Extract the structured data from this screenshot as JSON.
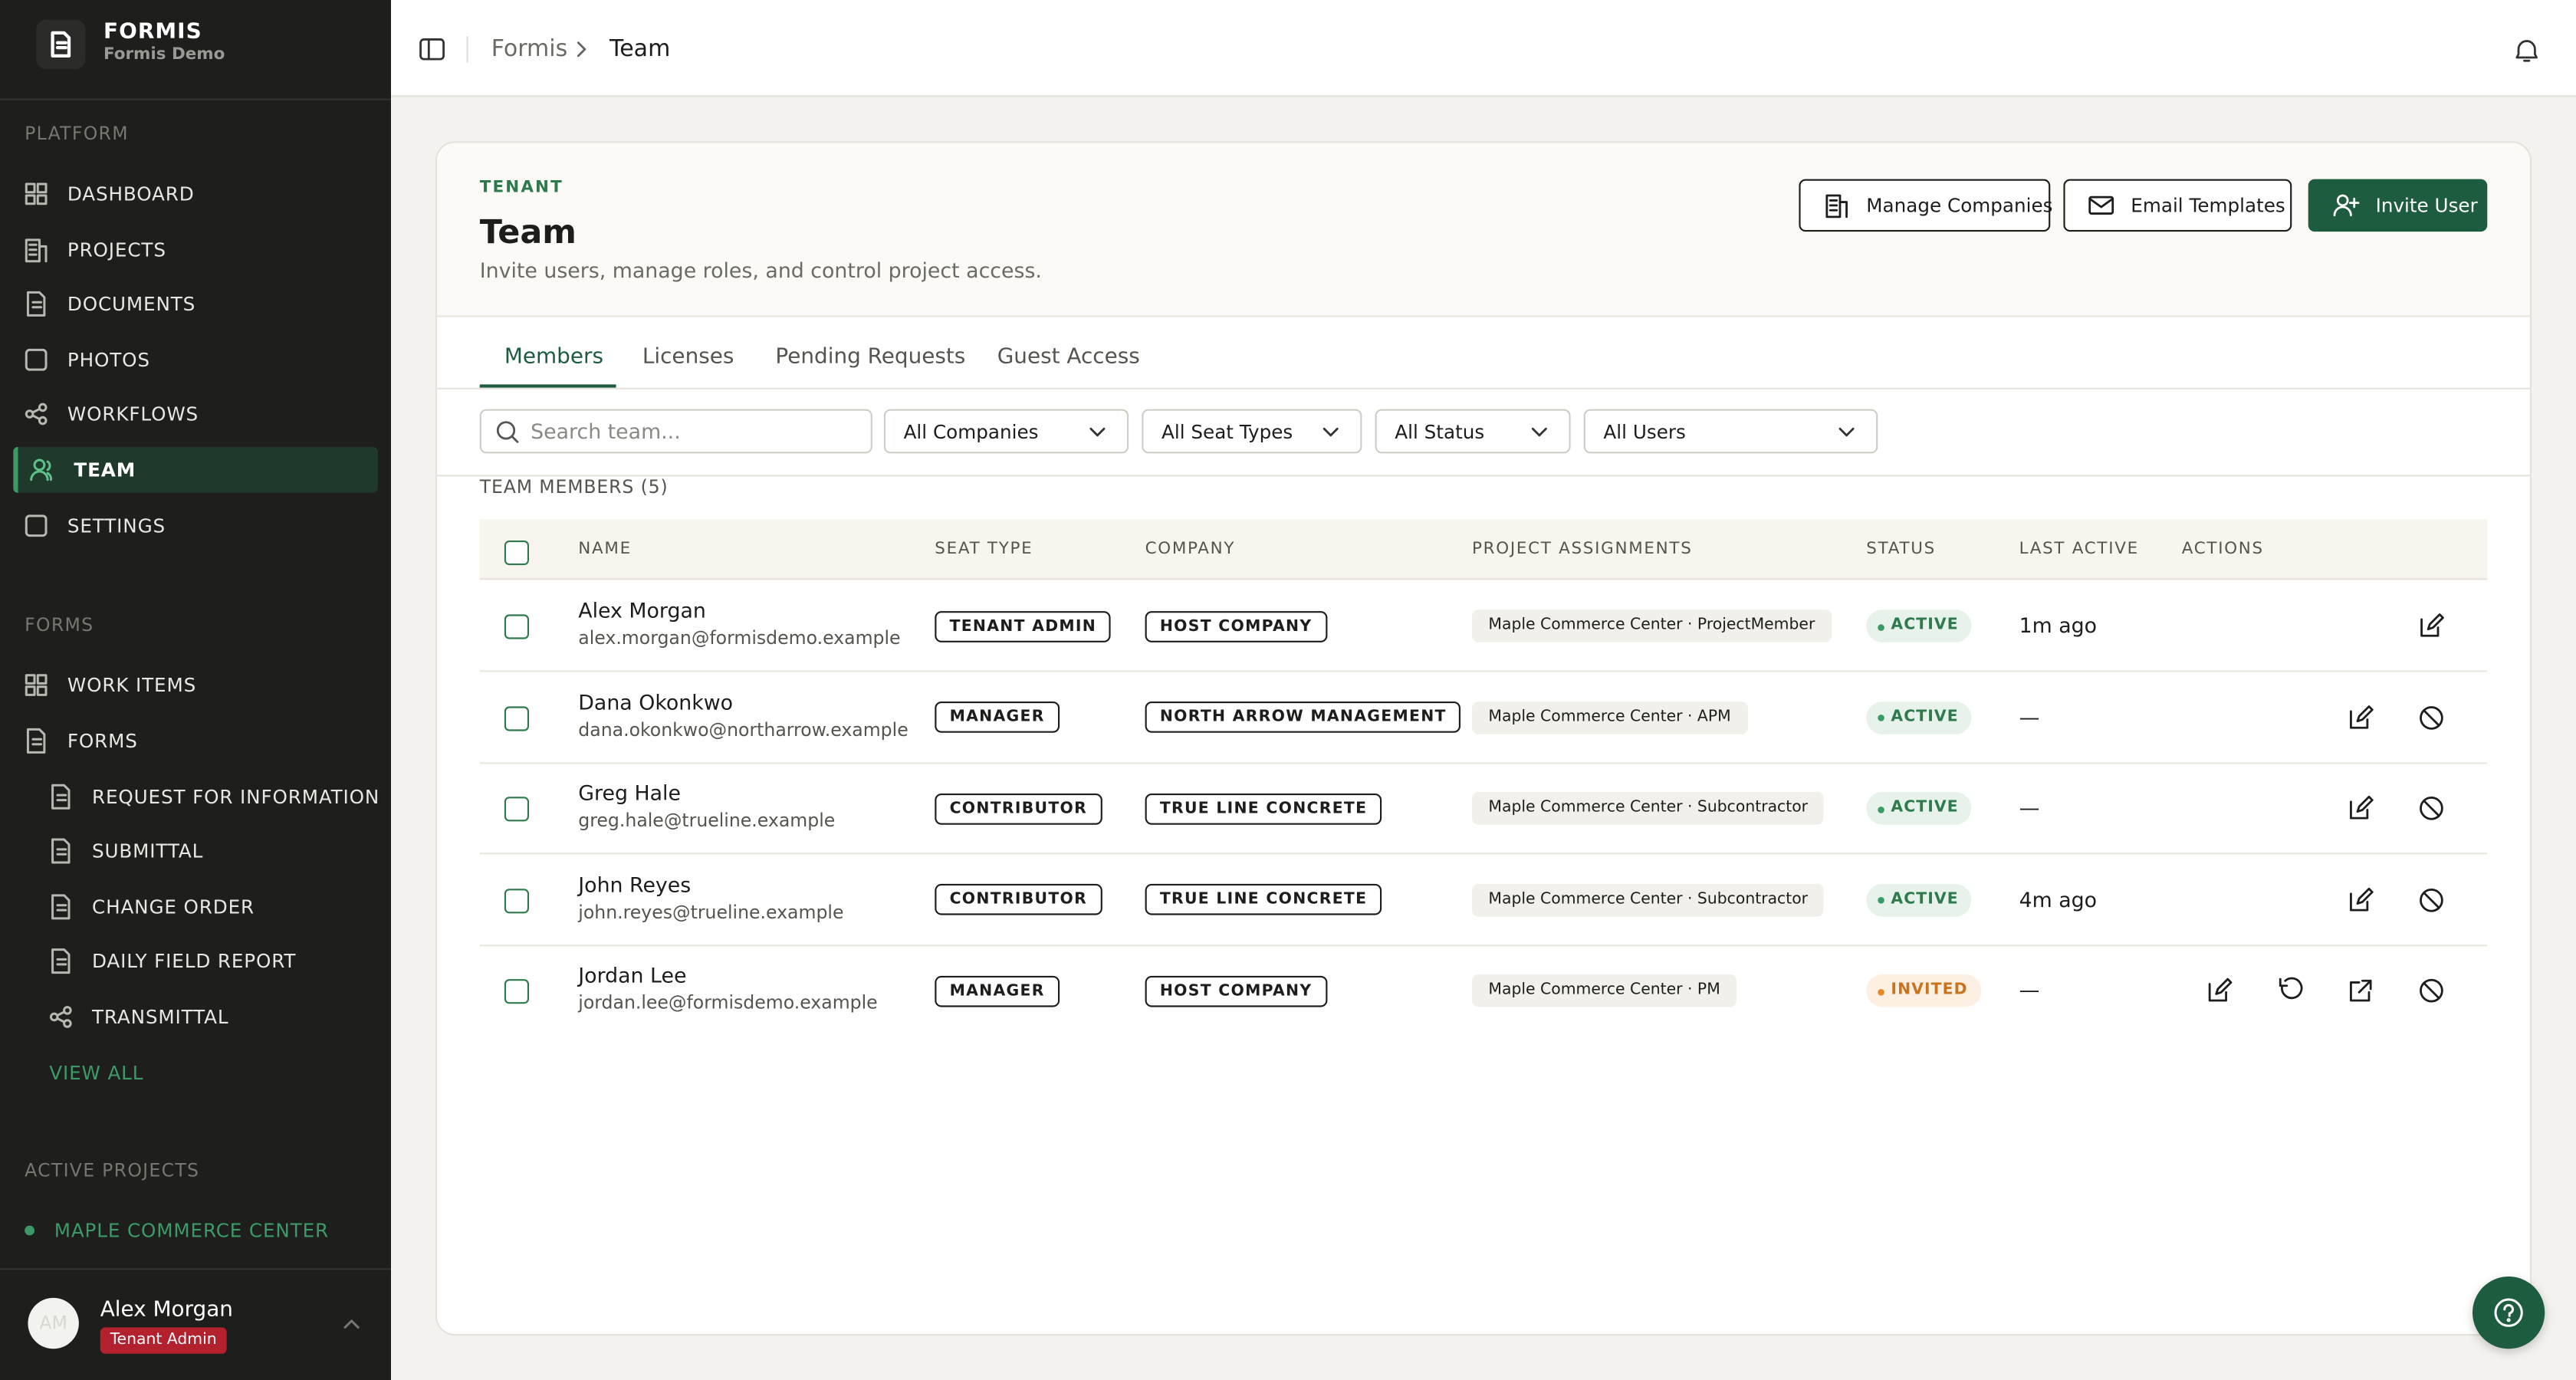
{
  "sidebar": {
    "brand": "FORMIS",
    "workspace": "Formis Demo",
    "platform": {
      "title": "PLATFORM",
      "items": [
        {
          "label": "DASHBOARD"
        },
        {
          "label": "PROJECTS"
        },
        {
          "label": "DOCUMENTS"
        },
        {
          "label": "PHOTOS"
        },
        {
          "label": "WORKFLOWS"
        },
        {
          "label": "TEAM",
          "active": true
        },
        {
          "label": "SETTINGS"
        }
      ]
    },
    "forms": {
      "title": "FORMS",
      "items": [
        "WORK ITEMS",
        "FORMS"
      ],
      "subitems": [
        "REQUEST FOR INFORMATION",
        "SUBMITTAL",
        "CHANGE ORDER",
        "DAILY FIELD REPORT",
        "TRANSMITTAL"
      ],
      "link": "VIEW ALL"
    },
    "active_projects": {
      "title": "ACTIVE PROJECTS",
      "items": [
        "MAPLE COMMERCE CENTER"
      ]
    },
    "user": {
      "initials": "AM",
      "name": "Alex Morgan",
      "role": "Tenant Admin"
    }
  },
  "topbar": {
    "breadcrumbs": [
      "Formis",
      "Team"
    ]
  },
  "page": {
    "eyebrow": "TENANT",
    "title": "Team",
    "subtitle": "Invite users, manage roles, and control project access.",
    "buttons": [
      "Manage Companies",
      "Email Templates",
      "Invite User"
    ]
  },
  "tabs": {
    "items": [
      "Members",
      "Licenses",
      "Pending Requests",
      "Guest Access"
    ],
    "active": 0
  },
  "filters": {
    "search_placeholder": "Search team...",
    "selects": [
      "All Companies",
      "All Seat Types",
      "All Status",
      "All Users"
    ]
  },
  "table": {
    "caption": "TEAM MEMBERS (5)",
    "columns": [
      "NAME",
      "SEAT TYPE",
      "COMPANY",
      "PROJECT ASSIGNMENTS",
      "STATUS",
      "LAST ACTIVE",
      "ACTIONS"
    ],
    "rows": [
      {
        "name": "Alex Morgan",
        "email": "alex.morgan@formisdemo.example",
        "seat": "TENANT ADMIN",
        "company": "HOST COMPANY",
        "assignment": "Maple Commerce Center · ProjectMember",
        "status": "ACTIVE",
        "last_active": "1m ago"
      },
      {
        "name": "Dana Okonkwo",
        "email": "dana.okonkwo@northarrow.example",
        "seat": "MANAGER",
        "company": "NORTH ARROW MANAGEMENT",
        "assignment": "Maple Commerce Center · APM",
        "status": "ACTIVE",
        "last_active": "—"
      },
      {
        "name": "Greg Hale",
        "email": "greg.hale@trueline.example",
        "seat": "CONTRIBUTOR",
        "company": "TRUE LINE CONCRETE",
        "assignment": "Maple Commerce Center · Subcontractor",
        "status": "ACTIVE",
        "last_active": "—"
      },
      {
        "name": "John Reyes",
        "email": "john.reyes@trueline.example",
        "seat": "CONTRIBUTOR",
        "company": "TRUE LINE CONCRETE",
        "assignment": "Maple Commerce Center · Subcontractor",
        "status": "ACTIVE",
        "last_active": "4m ago"
      },
      {
        "name": "Jordan Lee",
        "email": "jordan.lee@formisdemo.example",
        "seat": "MANAGER",
        "company": "HOST COMPANY",
        "assignment": "Maple Commerce Center · PM",
        "status": "INVITED",
        "last_active": "—"
      }
    ]
  }
}
